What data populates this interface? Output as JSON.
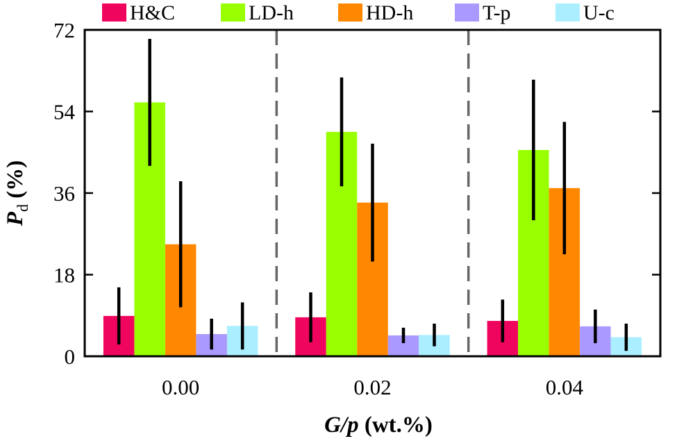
{
  "chart_data": {
    "type": "bar",
    "categories": [
      "0.00",
      "0.02",
      "0.04"
    ],
    "series": [
      {
        "name": "H&C",
        "color": "#f0055e",
        "values": [
          8.9,
          8.6,
          7.8
        ],
        "errors": [
          6.3,
          5.5,
          4.7
        ]
      },
      {
        "name": "LD-h",
        "color": "#99ff00",
        "values": [
          56.0,
          49.5,
          45.5
        ],
        "errors": [
          14.0,
          12.0,
          15.5
        ]
      },
      {
        "name": "HD-h",
        "color": "#ff8800",
        "values": [
          24.7,
          33.9,
          37.1
        ],
        "errors": [
          13.9,
          13.0,
          14.6
        ]
      },
      {
        "name": "T-p",
        "color": "#aa99ff",
        "values": [
          4.9,
          4.6,
          6.6
        ],
        "errors": [
          3.4,
          1.7,
          3.7
        ]
      },
      {
        "name": "U-c",
        "color": "#aaeeff",
        "values": [
          6.7,
          4.7,
          4.2
        ],
        "errors": [
          5.2,
          2.5,
          3.0
        ]
      }
    ],
    "xlabel": "G/p (wt.%)",
    "ylabel": "Pd (%)",
    "ylim": [
      0,
      72
    ],
    "yticks": [
      0,
      18,
      36,
      54,
      72
    ],
    "legend_position": "top",
    "separators": "dashed vertical lines between groups"
  },
  "axes": {
    "xlabel_italic": "G/p",
    "xlabel_rest": " (wt.%)",
    "ylabel_main": "P",
    "ylabel_sub": "d",
    "ylabel_rest": " (%)"
  }
}
